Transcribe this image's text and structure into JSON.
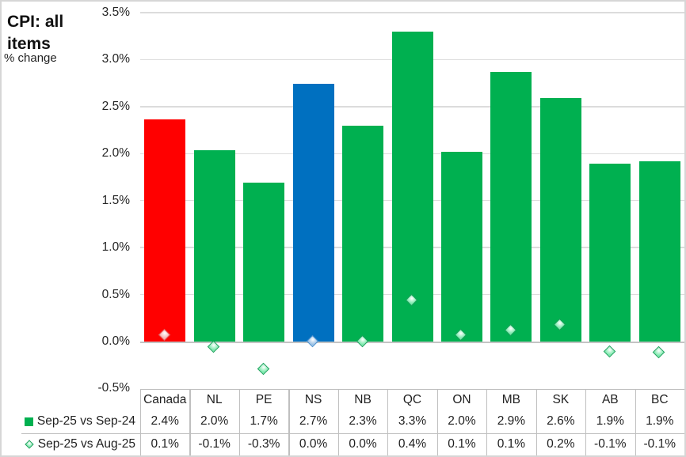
{
  "title": {
    "text": "CPI: all items",
    "subtitle": "% change"
  },
  "chart_data": {
    "type": "bar",
    "title": "CPI: all items",
    "ylabel": "% change",
    "categories": [
      "Canada",
      "NL",
      "PE",
      "NS",
      "NB",
      "QC",
      "ON",
      "MB",
      "SK",
      "AB",
      "BC"
    ],
    "series": [
      {
        "name": "Sep-25 vs Sep-24",
        "type": "bar",
        "values": [
          2.4,
          2.0,
          1.7,
          2.7,
          2.3,
          3.3,
          2.0,
          2.9,
          2.6,
          1.9,
          1.9
        ],
        "display": [
          "2.4%",
          "2.0%",
          "1.7%",
          "2.7%",
          "2.3%",
          "3.3%",
          "2.0%",
          "2.9%",
          "2.6%",
          "1.9%",
          "1.9%"
        ],
        "plot_values": [
          2.36,
          2.04,
          1.69,
          2.74,
          2.3,
          3.3,
          2.02,
          2.87,
          2.59,
          1.89,
          1.92
        ],
        "bar_colors": [
          "#FF0000",
          "#00B050",
          "#00B050",
          "#0070C0",
          "#00B050",
          "#00B050",
          "#00B050",
          "#00B050",
          "#00B050",
          "#00B050",
          "#00B050"
        ],
        "legend_icon": "square-icon",
        "legend_color": "#00B050"
      },
      {
        "name": "Sep-25 vs Aug-25",
        "type": "scatter",
        "marker": "diamond",
        "values": [
          0.1,
          -0.1,
          -0.3,
          0.0,
          0.0,
          0.4,
          0.1,
          0.1,
          0.2,
          -0.1,
          -0.1
        ],
        "display": [
          "0.1%",
          "-0.1%",
          "-0.3%",
          "0.0%",
          "0.0%",
          "0.4%",
          "0.1%",
          "0.1%",
          "0.2%",
          "-0.1%",
          "-0.1%"
        ],
        "plot_values": [
          0.06,
          -0.06,
          -0.3,
          0.0,
          0.0,
          0.43,
          0.06,
          0.11,
          0.17,
          -0.11,
          -0.12
        ],
        "marker_fills": [
          "#F5B5B5",
          "#7FEAAE",
          "#7FEAAE",
          "#9DC3E6",
          "#7FEAAE",
          "#7FEAAE",
          "#7FEAAE",
          "#7FEAAE",
          "#7FEAAE",
          "#7FEAAE",
          "#7FEAAE"
        ],
        "marker_borders": [
          "#E06060",
          "#1CA05C",
          "#1CA05C",
          "#4A90CE",
          "#1CA05C",
          "#1CA05C",
          "#1CA05C",
          "#1CA05C",
          "#1CA05C",
          "#1CA05C",
          "#1CA05C"
        ],
        "legend_icon": "diamond-icon",
        "legend_color": "#7FEAAE",
        "legend_border": "#1CA05C"
      }
    ],
    "y_axis": {
      "min": -0.5,
      "max": 3.5,
      "step": 0.5,
      "tick_labels": [
        "3.5%",
        "3.0%",
        "2.5%",
        "2.0%",
        "1.5%",
        "1.0%",
        "0.5%",
        "0.0%",
        "-0.5%"
      ],
      "tick_values": [
        3.5,
        3.0,
        2.5,
        2.0,
        1.5,
        1.0,
        0.5,
        0.0,
        -0.5
      ],
      "grid": true
    },
    "legend_position": "bottom-table-left",
    "colors": {
      "grid": "#dcdcdc",
      "zero_line": "#c3c3c3",
      "table_border": "#bfbfbf",
      "background": "#ffffff"
    }
  }
}
